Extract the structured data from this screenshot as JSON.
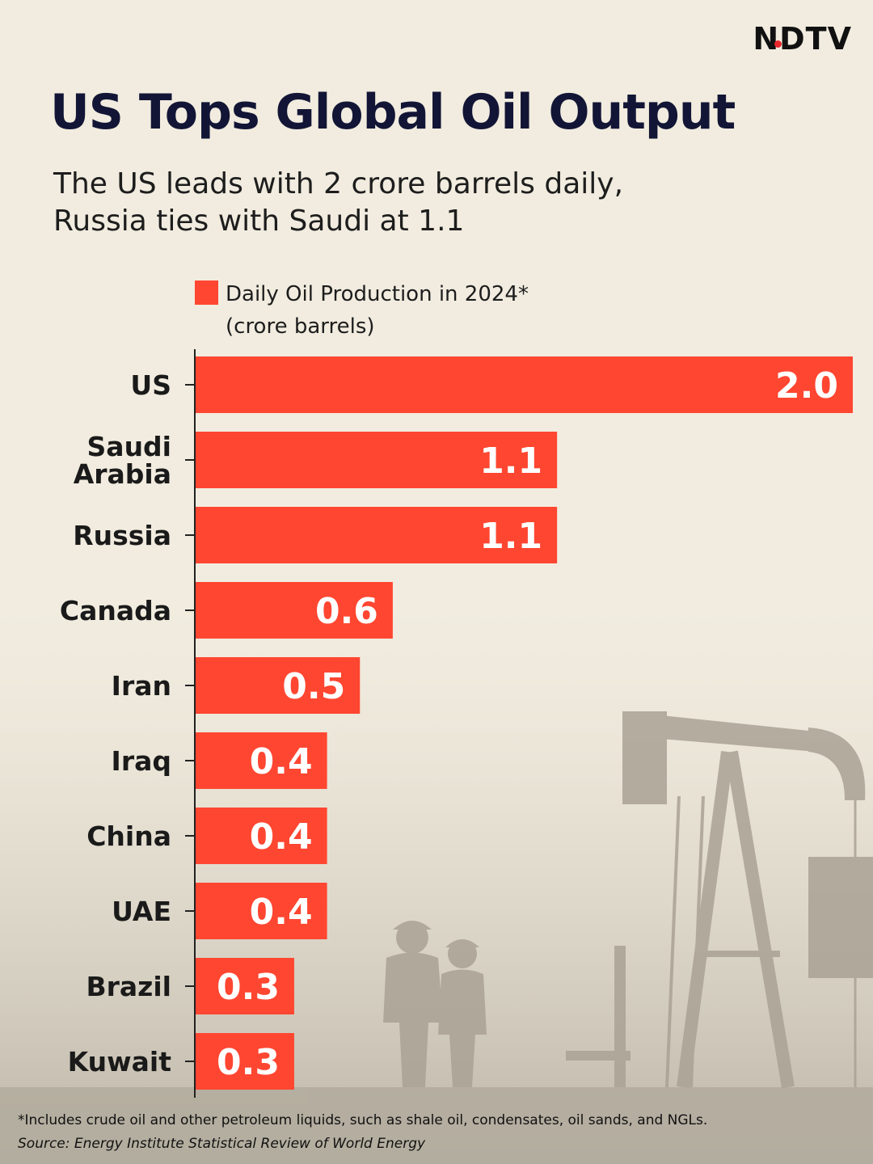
{
  "brand": {
    "logo_text": "NDTV",
    "accent": "#e8262c"
  },
  "header": {
    "title": "US Tops Global Oil Output",
    "subtitle_line1": "The US leads with 2 crore barrels daily,",
    "subtitle_line2": "Russia ties with Saudi at 1.1"
  },
  "chart_data": {
    "type": "bar",
    "orientation": "horizontal",
    "title": "US Tops Global Oil Output",
    "legend": {
      "label_line1": "Daily Oil Production in 2024*",
      "label_line2": "(crore barrels)",
      "color": "#ff4631",
      "placement": "top-left"
    },
    "xlim": [
      0,
      2.0
    ],
    "grid": false,
    "categories": [
      {
        "name": [
          "US"
        ],
        "value": 2.0,
        "label": "2.0"
      },
      {
        "name": [
          "Saudi",
          "Arabia"
        ],
        "value": 1.1,
        "label": "1.1"
      },
      {
        "name": [
          "Russia"
        ],
        "value": 1.1,
        "label": "1.1"
      },
      {
        "name": [
          "Canada"
        ],
        "value": 0.6,
        "label": "0.6"
      },
      {
        "name": [
          "Iran"
        ],
        "value": 0.5,
        "label": "0.5"
      },
      {
        "name": [
          "Iraq"
        ],
        "value": 0.4,
        "label": "0.4"
      },
      {
        "name": [
          "China"
        ],
        "value": 0.4,
        "label": "0.4"
      },
      {
        "name": [
          "UAE"
        ],
        "value": 0.4,
        "label": "0.4"
      },
      {
        "name": [
          "Brazil"
        ],
        "value": 0.3,
        "label": "0.3"
      },
      {
        "name": [
          "Kuwait"
        ],
        "value": 0.3,
        "label": "0.3"
      }
    ],
    "bar_color": "#ff4631"
  },
  "footer": {
    "note": "*Includes crude oil and other petroleum liquids, such as shale oil, condensates, oil sands, and NGLs.",
    "source": "Source: Energy Institute Statistical Review of World Energy"
  }
}
